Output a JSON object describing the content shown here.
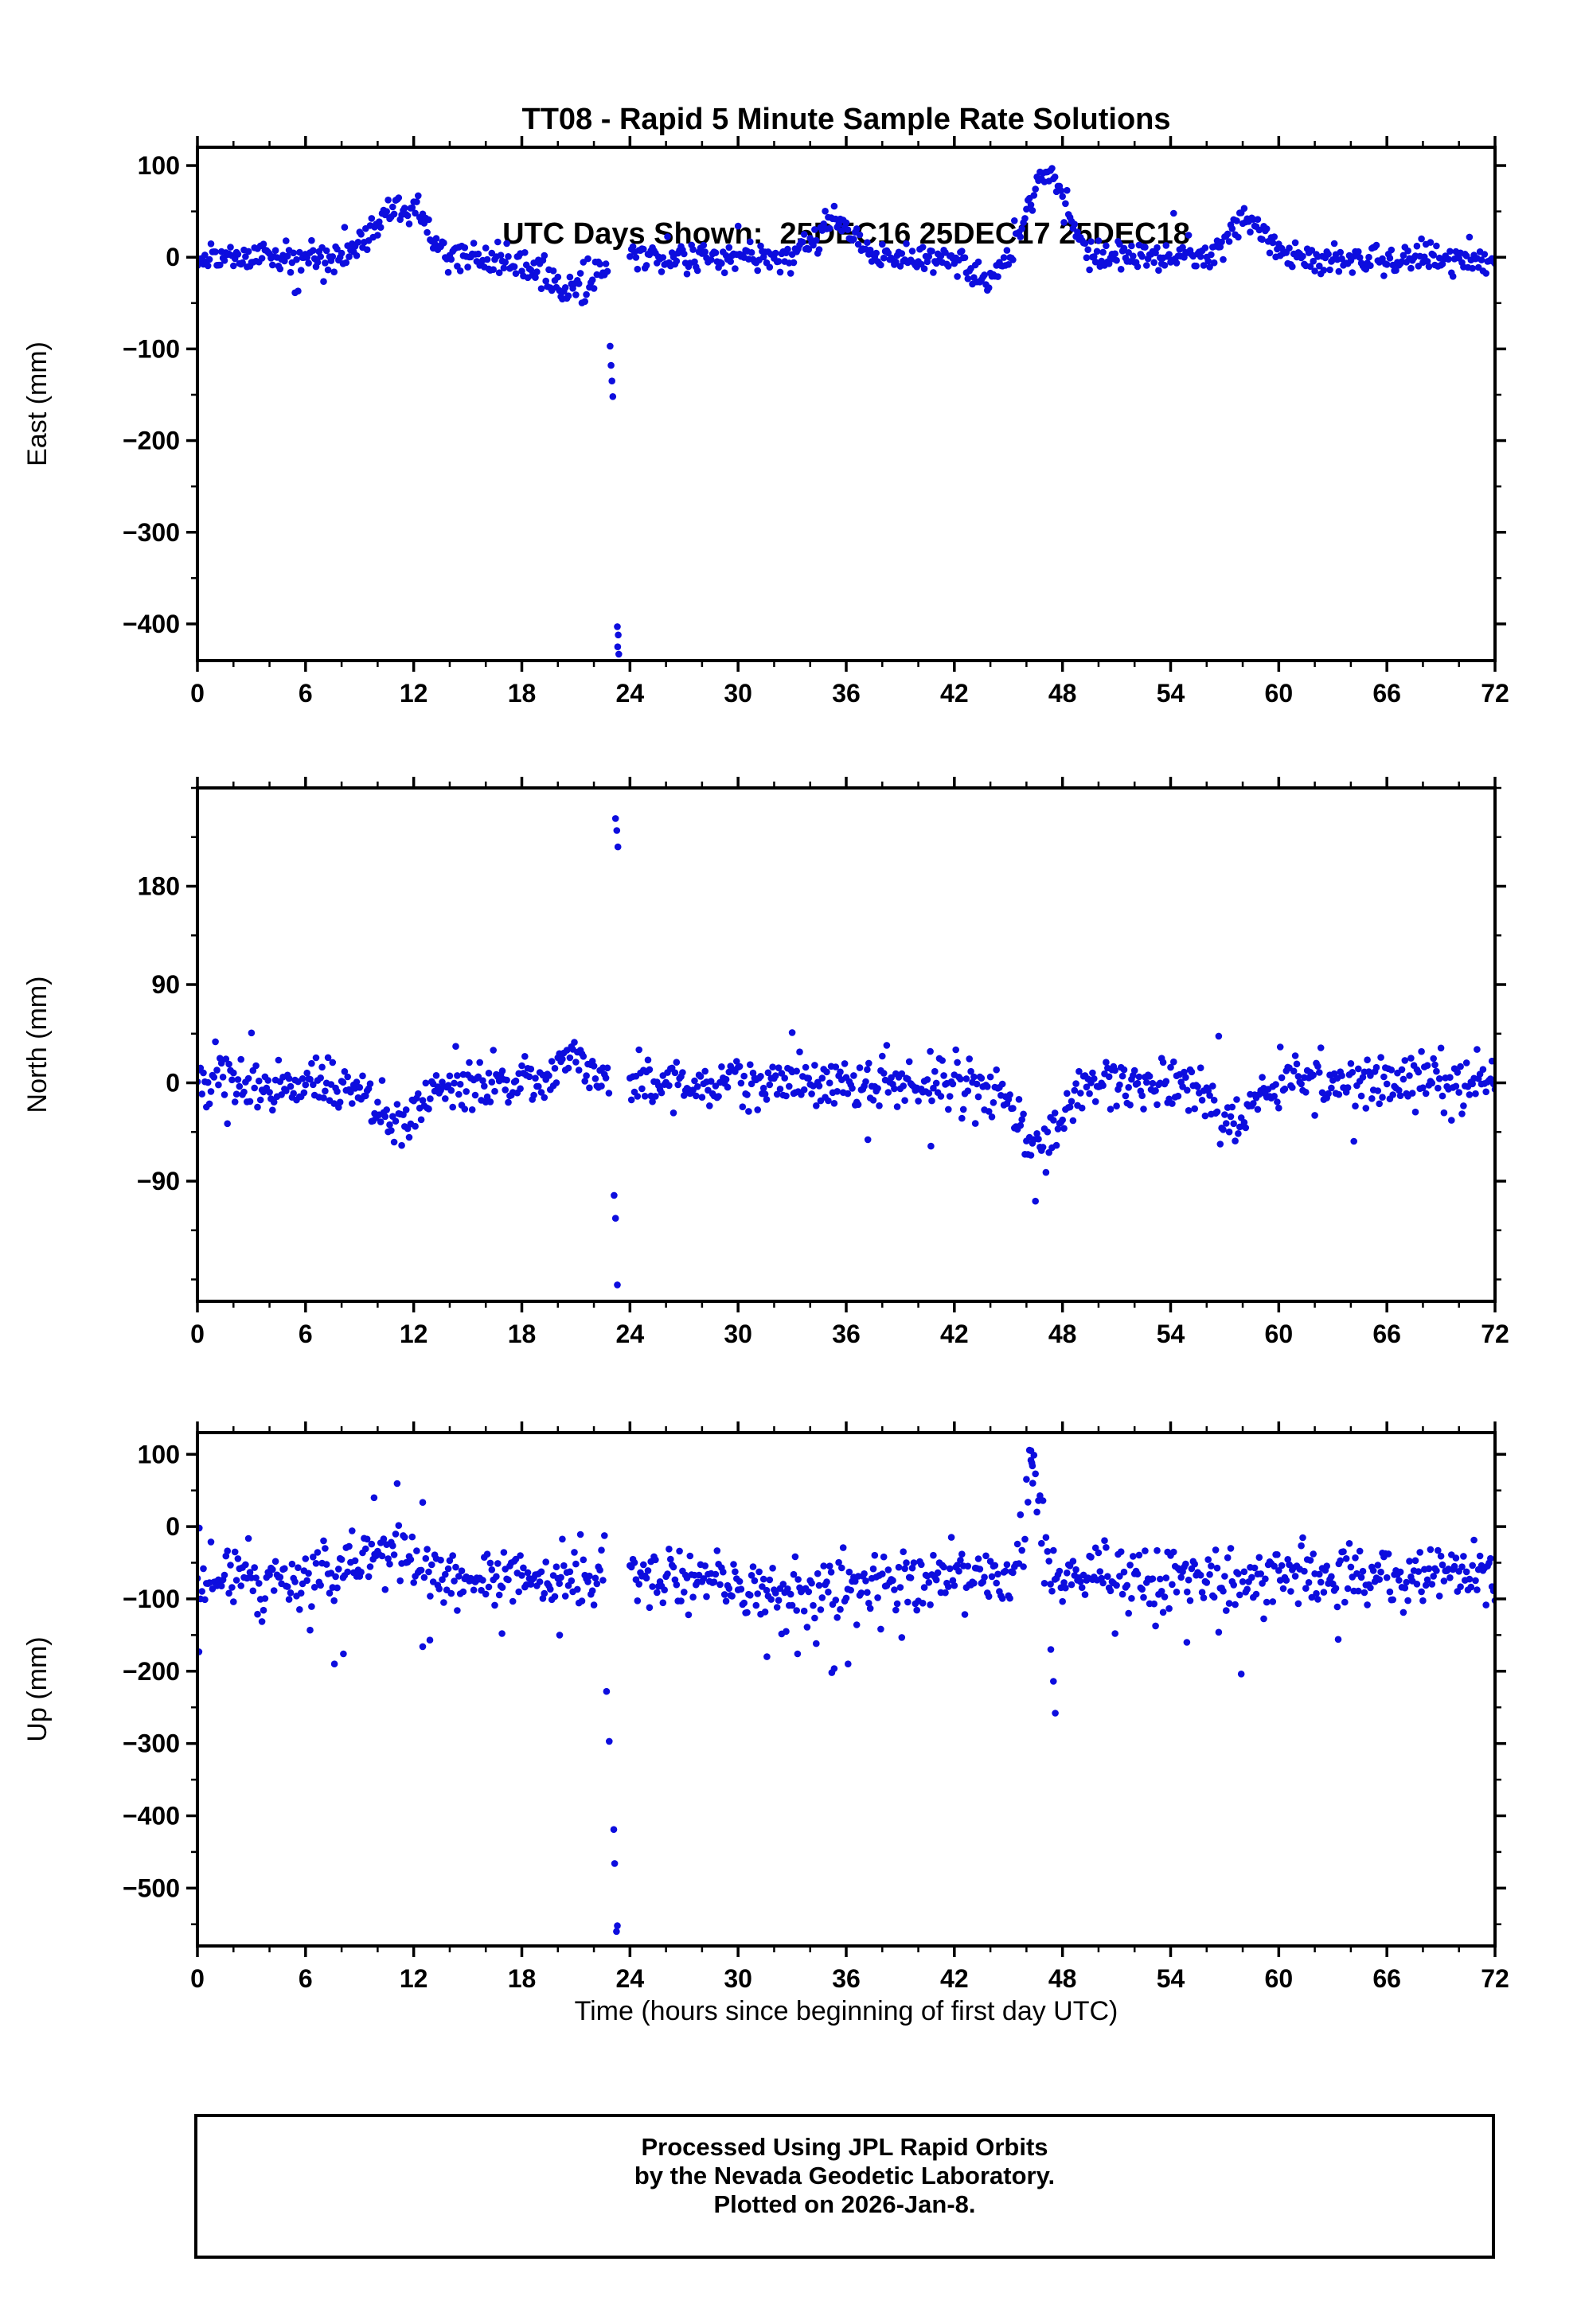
{
  "title": {
    "line1": "TT08 - Rapid 5 Minute Sample Rate Solutions",
    "line2": "UTC Days Shown:  25DEC16 25DEC17 25DEC18"
  },
  "xlabel": "Time (hours since beginning of first day UTC)",
  "footer": {
    "line1": "Processed Using JPL Rapid Orbits",
    "line2": "by the Nevada Geodetic Laboratory.",
    "line3": "Plotted on 2026-Jan-8."
  },
  "marker_color": "#0d0dde",
  "frame_color": "#000000",
  "sample_minutes": 5,
  "chart_data": [
    {
      "type": "scatter",
      "panel": "east",
      "ylabel": "East (mm)",
      "xlim": [
        0,
        72
      ],
      "ylim": [
        -440,
        120
      ],
      "xticks": [
        0,
        6,
        12,
        18,
        24,
        30,
        36,
        42,
        48,
        54,
        60,
        66,
        72
      ],
      "xminor_step": 2,
      "yticks": [
        100,
        0,
        -100,
        -200,
        -300,
        -400
      ],
      "yminor_step": 50,
      "seed": 11,
      "baseline": {
        "mean": 0,
        "sigma": 8
      },
      "tail": {
        "p": 0.01,
        "min": 18,
        "max": 40,
        "neg": 0.5
      },
      "gaps": [
        [
          22.8,
          24.0
        ]
      ],
      "features": [
        {
          "c": 11.0,
          "w": 1.3,
          "a": 50
        },
        {
          "c": 12.4,
          "w": 0.4,
          "a": 22
        },
        {
          "c": 20.5,
          "w": 1.4,
          "a": -34
        },
        {
          "c": 35.3,
          "w": 0.9,
          "a": 42
        },
        {
          "c": 43.6,
          "w": 0.7,
          "a": -26
        },
        {
          "c": 47.2,
          "w": 1.0,
          "a": 92
        },
        {
          "c": 58.3,
          "w": 1.0,
          "a": 40
        }
      ],
      "outliers": [
        [
          22.9,
          -97
        ],
        [
          22.95,
          -118
        ],
        [
          23.0,
          -135
        ],
        [
          23.05,
          -152
        ],
        [
          23.3,
          -403
        ],
        [
          23.35,
          -412
        ],
        [
          23.32,
          -425
        ],
        [
          23.38,
          -433
        ]
      ]
    },
    {
      "type": "scatter",
      "panel": "north",
      "ylabel": "North (mm)",
      "xlim": [
        0,
        72
      ],
      "ylim": [
        -200,
        270
      ],
      "xticks": [
        0,
        6,
        12,
        18,
        24,
        30,
        36,
        42,
        48,
        54,
        60,
        66,
        72
      ],
      "xminor_step": 2,
      "yticks": [
        180,
        90,
        0,
        -90
      ],
      "yminor_step": 45,
      "seed": 22,
      "baseline": {
        "mean": 0,
        "sigma": 12
      },
      "tail": {
        "p": 0.012,
        "min": 20,
        "max": 45,
        "neg": 0.5
      },
      "gaps": [
        [
          22.9,
          24.0
        ]
      ],
      "features": [
        {
          "c": 11.3,
          "w": 1.0,
          "a": -38
        },
        {
          "c": 20.8,
          "w": 0.9,
          "a": 26
        },
        {
          "c": 46.6,
          "w": 1.1,
          "a": -60
        },
        {
          "c": 57.6,
          "w": 0.8,
          "a": -38
        }
      ],
      "outliers": [
        [
          23.2,
          242
        ],
        [
          23.27,
          231
        ],
        [
          23.33,
          216
        ],
        [
          23.12,
          -103
        ],
        [
          23.2,
          -124
        ],
        [
          23.3,
          -185
        ],
        [
          33.0,
          46
        ],
        [
          37.2,
          -52
        ],
        [
          40.7,
          -58
        ]
      ]
    },
    {
      "type": "scatter",
      "panel": "up",
      "ylabel": "Up (mm)",
      "xlim": [
        0,
        72
      ],
      "ylim": [
        -580,
        130
      ],
      "xticks": [
        0,
        6,
        12,
        18,
        24,
        30,
        36,
        42,
        48,
        54,
        60,
        66,
        72
      ],
      "xminor_step": 2,
      "yticks": [
        100,
        0,
        -100,
        -200,
        -300,
        -400,
        -500
      ],
      "yminor_step": 50,
      "seed": 33,
      "baseline": {
        "mean": -70,
        "sigma": 22
      },
      "tail": {
        "p": 0.02,
        "min": 30,
        "max": 90,
        "neg": 0.7
      },
      "gaps": [
        [
          22.6,
          24.0
        ]
      ],
      "features": [
        {
          "c": 10.2,
          "w": 1.3,
          "a": 48
        },
        {
          "c": 33.0,
          "w": 3.0,
          "a": -25
        },
        {
          "c": 46.3,
          "w": 0.45,
          "a": 150
        }
      ],
      "outliers": [
        [
          0.1,
          -2
        ],
        [
          9.8,
          40
        ],
        [
          7.6,
          -190
        ],
        [
          8.1,
          -176
        ],
        [
          12.5,
          -166
        ],
        [
          12.9,
          -157
        ],
        [
          16.9,
          -148
        ],
        [
          20.1,
          -150
        ],
        [
          22.7,
          -228
        ],
        [
          22.85,
          -297
        ],
        [
          23.1,
          -419
        ],
        [
          23.15,
          -466
        ],
        [
          23.25,
          -560
        ],
        [
          23.3,
          -552
        ],
        [
          31.6,
          -180
        ],
        [
          33.3,
          -176
        ],
        [
          35.2,
          -202
        ],
        [
          36.1,
          -190
        ],
        [
          46.25,
          105
        ],
        [
          46.3,
          88
        ],
        [
          46.35,
          60
        ],
        [
          47.35,
          -170
        ],
        [
          47.5,
          -214
        ],
        [
          47.6,
          -258
        ],
        [
          54.9,
          -160
        ],
        [
          63.3,
          -156
        ]
      ]
    }
  ]
}
